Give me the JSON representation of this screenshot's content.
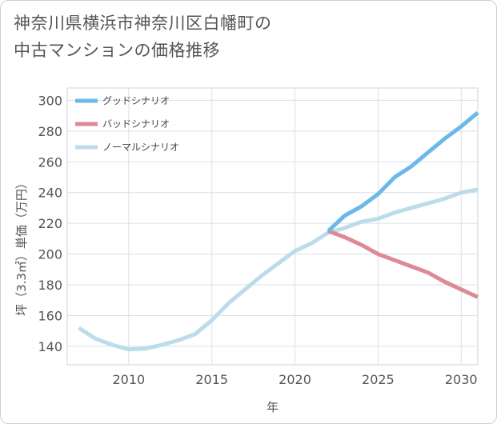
{
  "title": {
    "line1": "神奈川県横浜市神奈川区白幡町の",
    "line2": "中古マンションの価格推移"
  },
  "chart_data": {
    "type": "line",
    "xlabel": "年",
    "ylabel": "坪（3.3㎡）単価（万円）",
    "xlim": [
      2006.3,
      2031
    ],
    "ylim": [
      128,
      308
    ],
    "xticks": [
      2010,
      2015,
      2020,
      2025,
      2030
    ],
    "yticks": [
      140,
      160,
      180,
      200,
      220,
      240,
      260,
      280,
      300
    ],
    "grid": true,
    "legend_position": "top-left",
    "series": [
      {
        "name": "グッドシナリオ",
        "color": "#6cb8e8",
        "x": [
          2022,
          2023,
          2024,
          2025,
          2026,
          2027,
          2028,
          2029,
          2030,
          2031
        ],
        "y": [
          215,
          225,
          231,
          239,
          250,
          257,
          266,
          275,
          283,
          292
        ]
      },
      {
        "name": "バッドシナリオ",
        "color": "#dd8a94",
        "x": [
          2022,
          2023,
          2024,
          2025,
          2026,
          2027,
          2028,
          2029,
          2030,
          2031
        ],
        "y": [
          215,
          211,
          206,
          200,
          196,
          192,
          188,
          182,
          177,
          172
        ]
      },
      {
        "name": "ノーマルシナリオ",
        "color": "#bcdcea",
        "x": [
          2007,
          2008,
          2009,
          2010,
          2011,
          2012,
          2013,
          2014,
          2015,
          2016,
          2017,
          2018,
          2019,
          2020,
          2021,
          2022,
          2023,
          2024,
          2025,
          2026,
          2027,
          2028,
          2029,
          2030,
          2031
        ],
        "y": [
          152,
          145,
          141,
          138,
          138.5,
          141,
          144,
          148,
          157,
          168,
          177,
          186,
          194,
          202,
          207,
          214,
          217,
          221,
          223,
          227,
          230,
          233,
          236,
          240,
          242
        ]
      }
    ]
  }
}
